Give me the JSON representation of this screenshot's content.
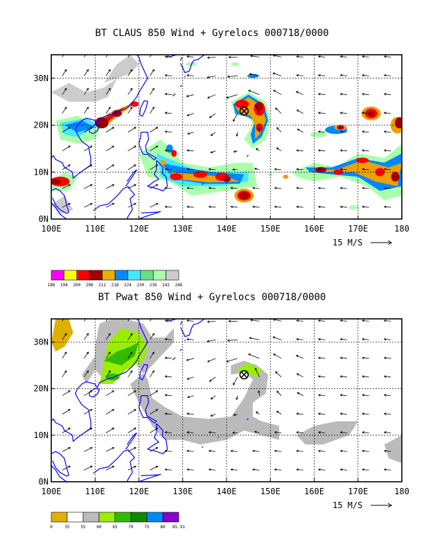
{
  "top_panel": {
    "title": "BT CLAUS 850 Wind + Gyrelocs 000718/0000",
    "lat_labels": [
      "30N",
      "20N",
      "10N",
      "0N"
    ],
    "lon_labels": [
      "100E",
      "110E",
      "120E",
      "130E",
      "140E",
      "150E",
      "160E",
      "170E",
      "180"
    ],
    "vector_ref": "15 M/S",
    "colorbar": {
      "labels": [
        "188",
        "194",
        "200",
        "206",
        "212",
        "218",
        "224",
        "230",
        "236",
        "242",
        "248"
      ],
      "colors": [
        "#ff00ff",
        "#ffff00",
        "#ff0000",
        "#a00000",
        "#e8b000",
        "#0088ff",
        "#44e8ff",
        "#66dd88",
        "#aaffaa",
        "#cccccc"
      ]
    },
    "field_colors": {
      "deep": "#a00000",
      "red": "#ff0000",
      "orange": "#f0a000",
      "blue": "#0088ff",
      "cyan": "#44e8ff",
      "green": "#66dd88",
      "lightgreen": "#aaffaa",
      "gray": "#cccccc"
    }
  },
  "bottom_panel": {
    "title": "BT Pwat 850 Wind + Gyrelocs 000718/0000",
    "lat_labels": [
      "30N",
      "20N",
      "10N",
      "0N"
    ],
    "lon_labels": [
      "100E",
      "110E",
      "120E",
      "130E",
      "140E",
      "150E",
      "160E",
      "170E",
      "180"
    ],
    "vector_ref": "15 M/S",
    "colorbar": {
      "labels": [
        "0",
        "35",
        "55",
        "60",
        "65",
        "70",
        "75",
        "80",
        "85.91"
      ],
      "colors": [
        "#e0b000",
        "#ffffff",
        "#bbbbbb",
        "#99ee00",
        "#33bb00",
        "#118800",
        "#0088ff",
        "#8800cc"
      ]
    },
    "field_colors": {
      "gray": "#bbbbbb",
      "lime": "#99ee00",
      "green": "#33bb00",
      "gold": "#e0b000"
    }
  },
  "gyre_marker": {
    "name": "Gyreloc",
    "lon": 144,
    "lat": 23
  },
  "map": {
    "lon_range": [
      100,
      180
    ],
    "lat_range": [
      0,
      35
    ],
    "coastline_color": "#0000ff",
    "grid_lons": [
      110,
      120,
      130,
      140,
      150,
      160,
      170
    ],
    "grid_lats": [
      10,
      20,
      30
    ]
  }
}
